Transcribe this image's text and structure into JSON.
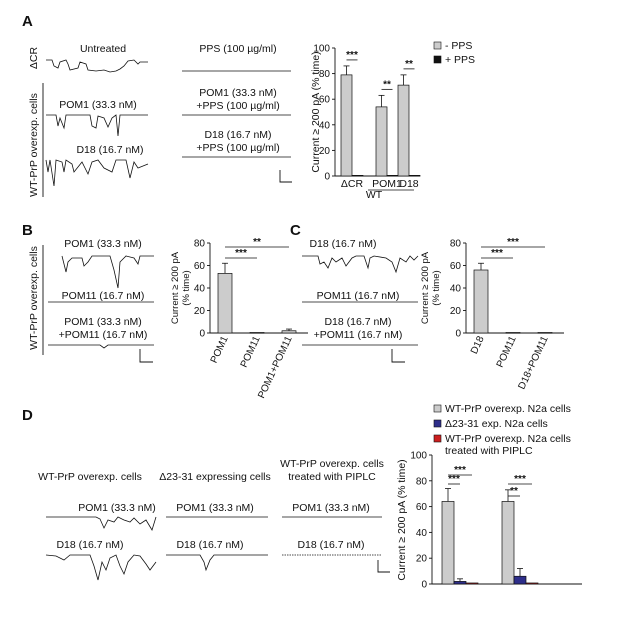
{
  "panels": {
    "A": {
      "letter": "A",
      "row_labels": [
        "ΔCR",
        "WT-PrP overexp. cells"
      ],
      "traces": {
        "untreated": "Untreated",
        "pps": "PPS (100 µg/ml)",
        "pom1": "POM1 (33.3 nM)",
        "pom1_pps_1": "POM1 (33.3 nM)",
        "pom1_pps_2": "+PPS (100 µg/ml)",
        "d18": "D18 (16.7 nM)",
        "d18_pps_1": "D18 (16.7 nM)",
        "d18_pps_2": "+PPS (100 µg/ml)"
      }
    },
    "B": {
      "letter": "B",
      "row_label": "WT-PrP overexp. cells",
      "traces": {
        "pom1": "POM1 (33.3 nM)",
        "pom11": "POM11 (16.7 nM)",
        "combo_1": "POM1 (33.3 nM)",
        "combo_2": "+POM11 (16.7 nM)"
      }
    },
    "C": {
      "letter": "C",
      "traces": {
        "d18": "D18 (16.7 nM)",
        "pom11": "POM11 (16.7 nM)",
        "combo_1": "D18 (16.7 nM)",
        "combo_2": "+POM11 (16.7 nM)"
      }
    },
    "D": {
      "letter": "D",
      "column_headers": {
        "wt": "WT-PrP overexp. cells",
        "del": "Δ23-31 expressing cells",
        "piplc_1": "WT-PrP overexp. cells",
        "piplc_2": "treated with PIPLC"
      },
      "traces": {
        "wt_pom1": "POM1 (33.3 nM)",
        "wt_d18": "D18 (16.7 nM)",
        "del_pom1": "POM1 (33.3 nM)",
        "del_d18": "D18 (16.7 nM)",
        "pi_pom1": "POM1 (33.3 nM)",
        "pi_d18": "D18 (16.7 nM)"
      }
    }
  },
  "chart_data": [
    {
      "type": "bar",
      "panel": "A",
      "ylabel": "Current ≥ 200 pA (% time)",
      "ylim": [
        0,
        100
      ],
      "yticks": [
        0,
        20,
        40,
        60,
        80,
        100
      ],
      "categories": [
        "ΔCR",
        "POM1",
        "D18"
      ],
      "group_label": "WT",
      "series": [
        {
          "name": "- PPS",
          "color": "#cccccc",
          "values": [
            79,
            54,
            71
          ],
          "errors": [
            7,
            9,
            8
          ]
        },
        {
          "name": "+ PPS",
          "color": "#111111",
          "values": [
            0.5,
            0.5,
            0.5
          ],
          "errors": [
            0,
            0,
            0
          ]
        }
      ],
      "significance": [
        "***",
        "**",
        "**"
      ],
      "legend_position": "top-right"
    },
    {
      "type": "bar",
      "panel": "B",
      "ylabel_lines": [
        "Current ≥ 200 pA",
        "(% time)"
      ],
      "ylim": [
        0,
        80
      ],
      "yticks": [
        0,
        20,
        40,
        60,
        80
      ],
      "categories": [
        "POM1",
        "POM11",
        "POM1+POM11"
      ],
      "values": [
        53,
        0.5,
        2
      ],
      "errors": [
        9,
        0,
        1.5
      ],
      "significance": [
        "***",
        "**"
      ]
    },
    {
      "type": "bar",
      "panel": "C",
      "ylabel_lines": [
        "Current ≥ 200 pA",
        "(% time)"
      ],
      "ylim": [
        0,
        80
      ],
      "yticks": [
        0,
        20,
        40,
        60,
        80
      ],
      "categories": [
        "D18",
        "POM11",
        "D18+POM11"
      ],
      "values": [
        56,
        0.5,
        0.5
      ],
      "errors": [
        6,
        0,
        0
      ],
      "significance": [
        "***",
        "***"
      ]
    },
    {
      "type": "bar",
      "panel": "D",
      "ylabel": "Current ≥ 200 pA (% time)",
      "ylim": [
        0,
        100
      ],
      "yticks": [
        0,
        20,
        40,
        60,
        80,
        100
      ],
      "series": [
        {
          "name": "WT-PrP overexp. N2a cells",
          "color": "#cccccc",
          "values": [
            64,
            64
          ],
          "errors": [
            10,
            9
          ]
        },
        {
          "name": "Δ23-31 exp. N2a cells",
          "color": "#2e2e8a",
          "values": [
            2,
            6
          ],
          "errors": [
            2,
            6
          ]
        },
        {
          "name": "WT-PrP overexp. N2a cells treated with PIPLC",
          "color": "#cc1f1f",
          "values": [
            0.8,
            0.8
          ],
          "errors": [
            0,
            0
          ]
        }
      ],
      "legend_lines": [
        [
          "WT-PrP overexp. N2a cells"
        ],
        [
          "Δ23-31 exp. N2a cells"
        ],
        [
          "WT-PrP overexp. N2a cells",
          "treated with PIPLC"
        ]
      ],
      "significance": [
        "***",
        "***",
        "***",
        "**"
      ],
      "legend_position": "top"
    }
  ]
}
